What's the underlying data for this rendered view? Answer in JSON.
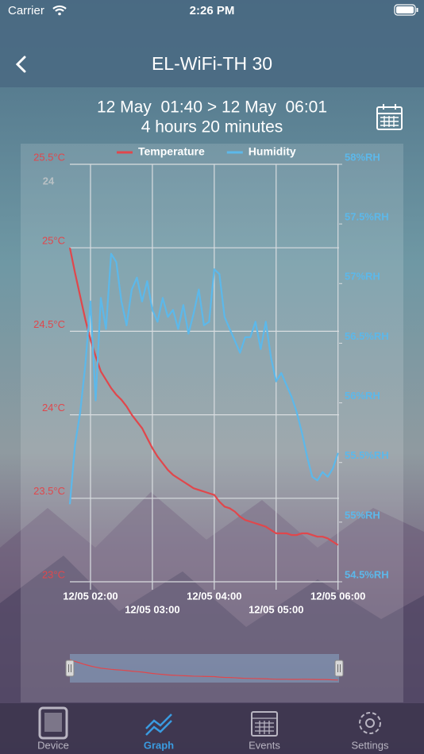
{
  "status_bar": {
    "carrier": "Carrier",
    "time": "2:26 PM"
  },
  "nav": {
    "title": "EL-WiFi-TH 30"
  },
  "header": {
    "range": "12 May  01:40 > 12 May  06:01",
    "duration": "4 hours 20 minutes"
  },
  "chart_data": {
    "type": "line",
    "overlay_label": "24",
    "x": [
      100,
      105,
      110,
      115,
      120,
      125,
      130,
      135,
      140,
      145,
      150,
      155,
      160,
      165,
      170,
      175,
      180,
      185,
      190,
      195,
      200,
      205,
      210,
      215,
      220,
      225,
      230,
      235,
      240,
      245,
      250,
      255,
      260,
      265,
      270,
      275,
      280,
      285,
      290,
      295,
      300,
      305,
      310,
      315,
      320,
      325,
      330,
      335,
      340,
      345,
      350,
      355,
      360
    ],
    "xlim": [
      100,
      361
    ],
    "xticks": [
      {
        "value": 120,
        "label": "12/05 02:00"
      },
      {
        "value": 180,
        "label": "12/05 03:00"
      },
      {
        "value": 240,
        "label": "12/05 04:00"
      },
      {
        "value": 300,
        "label": "12/05 05:00"
      },
      {
        "value": 360,
        "label": "12/05 06:00"
      }
    ],
    "ylim": [
      23,
      25.5
    ],
    "yticks": [
      {
        "value": 23,
        "label": "23°C"
      },
      {
        "value": 23.5,
        "label": "23.5°C"
      },
      {
        "value": 24,
        "label": "24°C"
      },
      {
        "value": 24.5,
        "label": "24.5°C"
      },
      {
        "value": 25,
        "label": "25°C"
      },
      {
        "value": 25.5,
        "label": "25.5°C"
      }
    ],
    "y2lim": [
      54.5,
      58
    ],
    "y2ticks": [
      {
        "value": 54.5,
        "label": "54.5%RH"
      },
      {
        "value": 55,
        "label": "55%RH"
      },
      {
        "value": 55.5,
        "label": "55.5%RH"
      },
      {
        "value": 56,
        "label": "56%RH"
      },
      {
        "value": 56.5,
        "label": "56.5%RH"
      },
      {
        "value": 57,
        "label": "57%RH"
      },
      {
        "value": 57.5,
        "label": "57.5%RH"
      },
      {
        "value": 58,
        "label": "58%RH"
      }
    ],
    "grid": true,
    "legend": "top",
    "series": [
      {
        "name": "Temperature",
        "color": "#e0474c",
        "values": [
          25.0,
          24.85,
          24.71,
          24.57,
          24.45,
          24.35,
          24.26,
          24.21,
          24.16,
          24.12,
          24.09,
          24.05,
          24.0,
          23.96,
          23.92,
          23.86,
          23.8,
          23.75,
          23.71,
          23.67,
          23.64,
          23.62,
          23.6,
          23.58,
          23.56,
          23.55,
          23.54,
          23.53,
          23.52,
          23.48,
          23.45,
          23.44,
          23.42,
          23.39,
          23.37,
          23.36,
          23.35,
          23.34,
          23.33,
          23.31,
          23.29,
          23.29,
          23.29,
          23.28,
          23.28,
          23.29,
          23.29,
          23.28,
          23.27,
          23.27,
          23.26,
          23.24,
          23.22
        ]
      },
      {
        "name": "Humidity",
        "color": "#5cb8ea",
        "axis": "y2",
        "values": [
          55.15,
          55.65,
          55.92,
          56.32,
          56.85,
          56.02,
          56.88,
          56.62,
          57.25,
          57.18,
          56.85,
          56.65,
          56.95,
          57.05,
          56.85,
          57.02,
          56.78,
          56.68,
          56.88,
          56.72,
          56.78,
          56.62,
          56.82,
          56.58,
          56.75,
          56.95,
          56.65,
          56.68,
          57.12,
          57.08,
          56.72,
          56.62,
          56.52,
          56.42,
          56.55,
          56.55,
          56.68,
          56.45,
          56.68,
          56.38,
          56.18,
          56.25,
          56.15,
          56.05,
          55.92,
          55.75,
          55.55,
          55.38,
          55.35,
          55.42,
          55.38,
          55.45,
          55.58
        ]
      }
    ]
  },
  "tabs": [
    {
      "label": "Device",
      "active": false
    },
    {
      "label": "Graph",
      "active": true
    },
    {
      "label": "Events",
      "active": false
    },
    {
      "label": "Settings",
      "active": false
    }
  ]
}
